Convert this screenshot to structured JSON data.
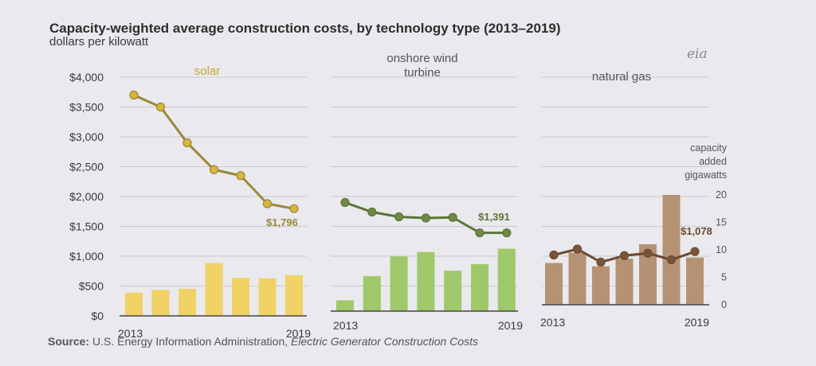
{
  "header": {
    "title": "Capacity-weighted average construction costs, by technology type (2013–2019)",
    "subtitle": "dollars per kilowatt",
    "logo": "eia"
  },
  "source": {
    "label": "Source:",
    "text": "U.S. Energy Information Administration,",
    "italic": "Electric Generator Construction Costs"
  },
  "chart_data": {
    "type": "line",
    "title": "Capacity-weighted average construction costs, by technology type (2013–2019)",
    "ylabel": "dollars per kilowatt",
    "ylim": [
      0,
      4000
    ],
    "yticks": [
      0,
      500,
      1000,
      1500,
      2000,
      2500,
      3000,
      3500,
      4000
    ],
    "ytick_labels": [
      "$0",
      "$500",
      "$1,000",
      "$1,500",
      "$2,000",
      "$2,500",
      "$3,000",
      "$3,500",
      "$4,000"
    ],
    "secondary_axis": {
      "label": [
        "capacity",
        "added",
        "gigawatts"
      ],
      "ylim": [
        0,
        20
      ],
      "ticks": [
        0,
        5,
        10,
        15,
        20
      ],
      "tick_labels": [
        "0",
        "5",
        "10",
        "15",
        "20"
      ]
    },
    "x": [
      2013,
      2014,
      2015,
      2016,
      2017,
      2018,
      2019
    ],
    "panels": [
      {
        "name": "solar",
        "title": [
          "solar"
        ],
        "x_start_label": "2013",
        "x_end_label": "2019",
        "line_color": "#9a8838",
        "point_color": "#d9b53c",
        "bar_color": "#f0d266",
        "cost": [
          3700,
          3500,
          2900,
          2450,
          2350,
          1880,
          1796
        ],
        "capacity": [
          2.2,
          2.7,
          2.9,
          7.6,
          4.9,
          4.8,
          5.4
        ],
        "end_label": "$1,796"
      },
      {
        "name": "onshore wind turbine",
        "title": [
          "onshore wind",
          "turbine"
        ],
        "x_start_label": "2013",
        "x_end_label": "2019",
        "line_color": "#5c7536",
        "point_color": "#6f8a45",
        "bar_color": "#9ec86a",
        "cost": [
          1900,
          1740,
          1660,
          1640,
          1650,
          1391,
          1391
        ],
        "capacity": [
          0.8,
          5.2,
          8.8,
          9.6,
          6.2,
          7.4,
          10.2
        ],
        "end_label": "$1,391"
      },
      {
        "name": "natural gas",
        "title": [
          "natural gas"
        ],
        "x_start_label": "2013",
        "x_end_label": "2019",
        "line_color": "#6e4a30",
        "point_color": "#7a5438",
        "bar_color": "#b49273",
        "cost": [
          1020,
          1120,
          900,
          1010,
          1050,
          940,
          1078
        ],
        "capacity": [
          7.6,
          9.5,
          7.0,
          8.4,
          11.0,
          20.0,
          8.6
        ],
        "end_label": "$1,078"
      }
    ]
  }
}
